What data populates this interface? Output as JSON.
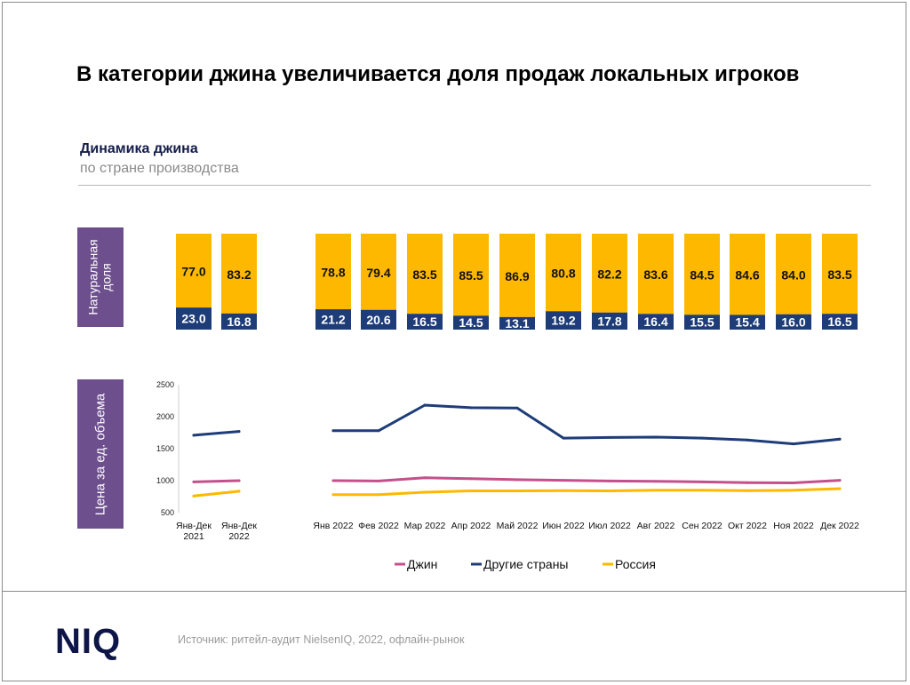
{
  "title": "В категории джина увеличивается доля продаж локальных игроков",
  "subtitle": "Динамика джина",
  "subtitle2": "по стране производства",
  "share_label": "Натуральная\nдоля",
  "price_label": "Цена за ед. объема",
  "source": "Источник: ритейл-аудит NielsenIQ, 2022, офлайн-рынок",
  "logo": "NIQ",
  "colors": {
    "yellow": "#ffb800",
    "navy": "#1d3c78",
    "pink": "#c4508b",
    "purple": "#6d4f8e"
  },
  "chart_data": [
    {
      "type": "bar",
      "stacked": true,
      "categories": [
        "Янв-Дек 2021",
        "Янв-Дек 2022",
        "Янв 2022",
        "Фев 2022",
        "Мар 2022",
        "Апр 2022",
        "Май 2022",
        "Июн 2022",
        "Июл 2022",
        "Авг 2022",
        "Сен 2022",
        "Окт 2022",
        "Ноя 2022",
        "Дек 2022"
      ],
      "series": [
        {
          "values": [
            23.0,
            16.8,
            21.2,
            20.6,
            16.5,
            14.5,
            13.1,
            19.2,
            17.8,
            16.4,
            15.5,
            15.4,
            16.0,
            16.5
          ]
        },
        {
          "values": [
            77.0,
            83.2,
            78.8,
            79.4,
            83.5,
            85.5,
            86.9,
            80.8,
            82.2,
            83.6,
            84.5,
            84.6,
            84.0,
            83.5
          ]
        }
      ],
      "labels_bottom": [
        "23.0",
        "16.8",
        "21.2",
        "20.6",
        "16.5",
        "14.5",
        "13.1",
        "19.2",
        "17.8",
        "16.4",
        "15.5",
        "15.4",
        "16.0",
        "16.5"
      ],
      "labels_top": [
        "77.0",
        "83.2",
        "78.8",
        "79.4",
        "83.5",
        "85.5",
        "86.9",
        "80.8",
        "82.2",
        "83.6",
        "84.5",
        "84.6",
        "84.0",
        "83.5"
      ]
    },
    {
      "type": "line",
      "categories": [
        "Янв-Дек\n2021",
        "Янв-Дек\n2022",
        "Янв 2022",
        "Фев 2022",
        "Мар 2022",
        "Апр 2022",
        "Май 2022",
        "Июн 2022",
        "Июл 2022",
        "Авг 2022",
        "Сен 2022",
        "Окт 2022",
        "Ноя 2022",
        "Дек 2022"
      ],
      "ylim": [
        500,
        2500
      ],
      "yticks": [
        "2500",
        "2000",
        "1500",
        "1000",
        "500"
      ],
      "series": [
        {
          "name": "Джин",
          "color": "#c4508b",
          "values": [
            980,
            1000,
            1000,
            995,
            1045,
            1030,
            1015,
            1005,
            995,
            990,
            980,
            970,
            965,
            1005
          ]
        },
        {
          "name": "Другие страны",
          "color": "#1d3c78",
          "values": [
            1710,
            1770,
            1780,
            1780,
            2180,
            2140,
            2135,
            1665,
            1675,
            1680,
            1665,
            1635,
            1575,
            1650
          ]
        },
        {
          "name": "Россия",
          "color": "#ffb800",
          "values": [
            760,
            835,
            780,
            780,
            820,
            840,
            840,
            845,
            840,
            850,
            850,
            845,
            850,
            875
          ]
        }
      ]
    }
  ]
}
